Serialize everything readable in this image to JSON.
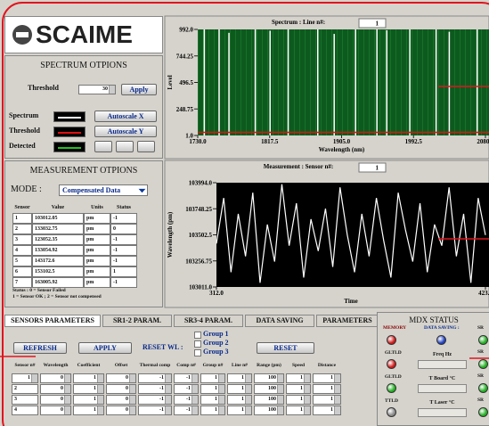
{
  "logo": "SCAIME",
  "spectrum_options": {
    "title": "SPECTRUM OTPIONS",
    "threshold_label": "Threshold",
    "threshold": 30,
    "apply": "Apply",
    "spectrum_label": "Spectrum",
    "autoscale_x": "Autoscale X",
    "threshold_row_label": "Threshold",
    "autoscale_y": "Autoscale Y",
    "detected_label": "Detected",
    "detected_color": "#22c022"
  },
  "measurement_options": {
    "title": "MEASUREMENT OTPIONS",
    "mode_label": "MODE :",
    "mode": "Compensated Data",
    "headers": [
      "Sensor",
      "Value",
      "Units",
      "Status"
    ],
    "rows": [
      [
        1,
        103012.05,
        "pm",
        -1
      ],
      [
        2,
        133032.75,
        "pm",
        0
      ],
      [
        3,
        123052.35,
        "pm",
        -1
      ],
      [
        4,
        133054.92,
        "pm",
        -1
      ],
      [
        5,
        143172.6,
        "pm",
        -1
      ],
      [
        6,
        153102.5,
        "pm",
        1
      ],
      [
        7,
        163005.92,
        "pm",
        -1
      ]
    ],
    "status_note": [
      "Status : 0 = Sensor Failed",
      "1 = Sensor OK ; 2 = Sensor not compensed"
    ]
  },
  "chart_data": [
    {
      "type": "stem",
      "title": "Spectrum : Line n#:",
      "line_n": 1,
      "ylabel": "Level",
      "xlabel": "Wavelength (nm)",
      "color": "#ffffff",
      "threshold_color": "#e01010",
      "x": [
        1738,
        1756,
        1768,
        1800,
        1818,
        1840,
        1876,
        1896,
        1922,
        1948,
        1960,
        1988,
        2020,
        2036,
        2070
      ],
      "values": [
        992,
        992,
        960,
        992,
        980,
        992,
        992,
        950,
        992,
        992,
        985,
        992,
        992,
        970,
        992
      ],
      "xlim": [
        1730,
        2080
      ],
      "xticks": [
        {
          "value": 1730,
          "label": "1730.0"
        },
        1817.5,
        {
          "value": 1905,
          "label": "1905.0"
        },
        1992.5,
        {
          "value": 2080,
          "label": "2080.0"
        }
      ],
      "ylim": [
        1,
        992
      ],
      "yticks": [
        {
          "value": 992,
          "label": "992.0"
        },
        744.25,
        496.5,
        248.75,
        {
          "value": 1,
          "label": "1.0"
        }
      ]
    },
    {
      "type": "line",
      "title": "Measurement : Sensor n#:",
      "sensor_n": 1,
      "ylabel": "Wavelength (pm)",
      "xlabel": "Time",
      "color": "#ffffff",
      "x": [
        312,
        315,
        318,
        321,
        324,
        327,
        330,
        333,
        336,
        339,
        342,
        345,
        348,
        351,
        354,
        357,
        360,
        363,
        366,
        369,
        372,
        375,
        378,
        381,
        384,
        387,
        390,
        393,
        396,
        399,
        402,
        405,
        408,
        411,
        414,
        417,
        420,
        423
      ],
      "values": [
        103420,
        103850,
        103150,
        103700,
        103300,
        103900,
        103050,
        103600,
        103250,
        103980,
        103400,
        103800,
        103100,
        103650,
        103350,
        103750,
        103200,
        103950,
        103500,
        103150,
        103700,
        103300,
        103850,
        103450,
        103100,
        103900,
        103550,
        103250,
        103800,
        103150,
        103600,
        103400,
        103950,
        103300,
        103700,
        103050,
        103850,
        103500
      ],
      "xlim": [
        312,
        423
      ],
      "xticks": [
        {
          "value": 312,
          "label": "312.0"
        },
        {
          "value": 423,
          "label": "423.0"
        }
      ],
      "ylim": [
        103011,
        103994
      ],
      "yticks": [
        {
          "value": 103994,
          "label": "103994.0"
        },
        103748.25,
        103502.5,
        103256.75,
        {
          "value": 103011,
          "label": "103011.0"
        }
      ]
    }
  ],
  "tabs": [
    "SENSORS PARAMETERS",
    "SR1-2 PARAM.",
    "SR3-4 PARAM.",
    "DATA SAVING",
    "PARAMETERS"
  ],
  "sensors": {
    "refresh": "REFRESH",
    "apply": "APPLY",
    "reset_wl": "RESET WL :",
    "groups": [
      "Group 1",
      "Group 2",
      "Group 3"
    ],
    "reset": "RESET",
    "headers": [
      "Sensor n#",
      "Wavelength",
      "Coefficient",
      "Offset",
      "Thermal comp",
      "Comp n#",
      "Group n#",
      "Line n#",
      "Range (pm)",
      "Speed",
      "Distance"
    ],
    "rows": [
      [
        1,
        0,
        1,
        0,
        -1,
        -1,
        1,
        1,
        100,
        1,
        1
      ],
      [
        2,
        0,
        1,
        0,
        -1,
        -1,
        1,
        1,
        100,
        1,
        1
      ],
      [
        3,
        0,
        1,
        0,
        -1,
        -1,
        1,
        1,
        100,
        1,
        1
      ],
      [
        4,
        0,
        1,
        0,
        -1,
        -1,
        1,
        1,
        100,
        1,
        1
      ]
    ]
  },
  "mdx": {
    "title": "MDX STATUS",
    "memory": "MEMORY",
    "data_saving": "DATA SAVING :",
    "sr": [
      "SR",
      "SR",
      "SR",
      "SR"
    ],
    "leds": [
      "GLTLD",
      "GLTLD",
      "TTLD"
    ],
    "fields": [
      "Freq Hz",
      "T Board °C",
      "T Laser °C"
    ]
  }
}
